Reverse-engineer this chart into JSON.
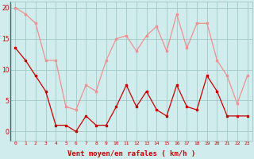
{
  "hours": [
    0,
    1,
    2,
    3,
    4,
    5,
    6,
    7,
    8,
    9,
    10,
    11,
    12,
    13,
    14,
    15,
    16,
    17,
    18,
    19,
    20,
    21,
    22,
    23
  ],
  "rafales": [
    20,
    19,
    17.5,
    11.5,
    11.5,
    4,
    3.5,
    7.5,
    6.5,
    11.5,
    15,
    15.5,
    13,
    15.5,
    17,
    13,
    19,
    13.5,
    17.5,
    17.5,
    11.5,
    9,
    4.5,
    9
  ],
  "vent_moyen": [
    13.5,
    11.5,
    9,
    6.5,
    1,
    1,
    0,
    2.5,
    1,
    1,
    4,
    7.5,
    4,
    6.5,
    3.5,
    2.5,
    7.5,
    4,
    3.5,
    9,
    6.5,
    2.5,
    2.5,
    2.5
  ],
  "color_rafales": "#f09090",
  "color_vent": "#cc0000",
  "bg_color": "#d0ecec",
  "grid_color": "#a0c8c8",
  "xlabel": "Vent moyen/en rafales ( km/h )",
  "xlabel_color": "#cc0000",
  "tick_color": "#cc0000",
  "yticks": [
    0,
    5,
    10,
    15,
    20
  ],
  "ylim": [
    -1.5,
    21
  ],
  "xlim": [
    -0.5,
    23.5
  ]
}
